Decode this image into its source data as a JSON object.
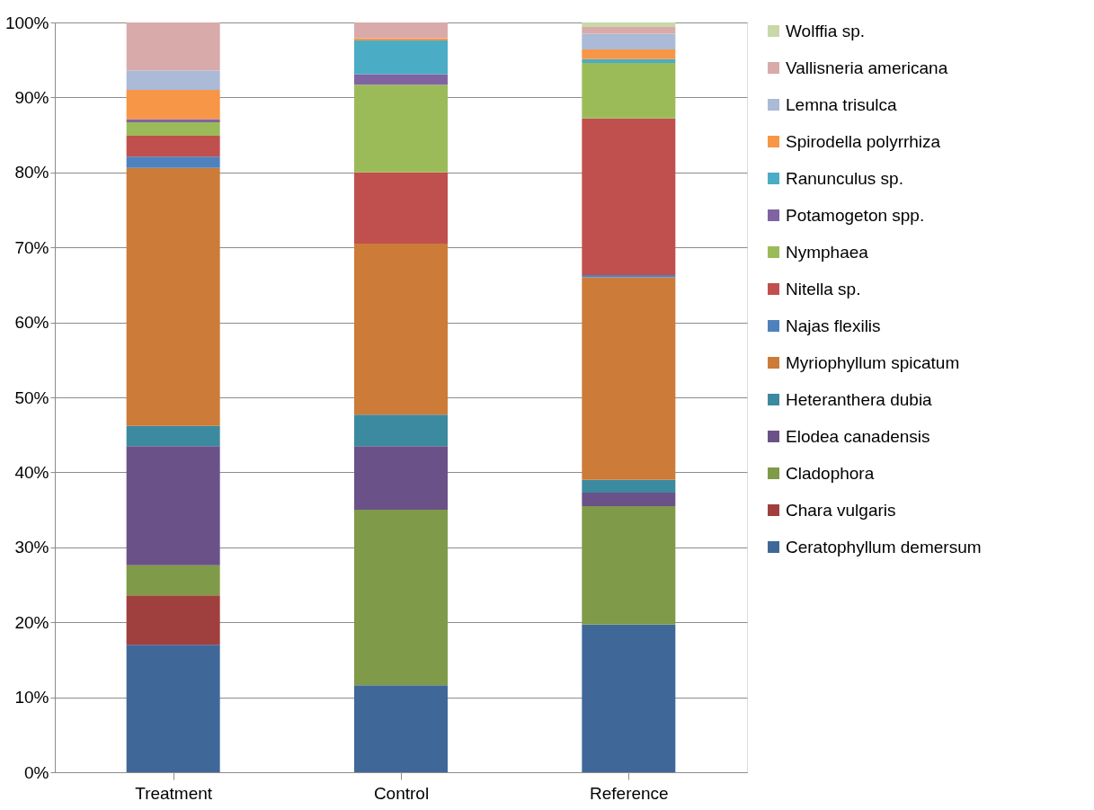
{
  "chart_data": {
    "type": "bar",
    "stacked": true,
    "categories": [
      "Treatment",
      "Control",
      "Reference"
    ],
    "series": [
      {
        "name": "Ceratophyllum demersum",
        "color": "#3f6899",
        "values": [
          17.0,
          11.6,
          19.7
        ]
      },
      {
        "name": "Chara vulgaris",
        "color": "#a0403e",
        "values": [
          6.6,
          0,
          0
        ]
      },
      {
        "name": "Cladophora",
        "color": "#7f9a48",
        "values": [
          4.0,
          23.4,
          15.8
        ]
      },
      {
        "name": "Elodea canadensis",
        "color": "#6a5288",
        "values": [
          15.9,
          8.5,
          1.8
        ]
      },
      {
        "name": "Heteranthera dubia",
        "color": "#3c8a9f",
        "values": [
          2.7,
          4.2,
          1.7
        ]
      },
      {
        "name": "Myriophyllum spicatum",
        "color": "#cc7b38",
        "values": [
          34.4,
          22.8,
          27.0
        ]
      },
      {
        "name": "Najas flexilis",
        "color": "#4f81bd",
        "values": [
          1.5,
          0,
          0.3
        ]
      },
      {
        "name": "Nitella sp.",
        "color": "#c0504d",
        "values": [
          2.8,
          9.5,
          20.9
        ]
      },
      {
        "name": "Nymphaea",
        "color": "#9bbb59",
        "values": [
          1.8,
          11.7,
          7.4
        ]
      },
      {
        "name": "Potamogeton spp.",
        "color": "#8064a2",
        "values": [
          0.4,
          1.4,
          0
        ]
      },
      {
        "name": "Ranunculus sp.",
        "color": "#4bacc6",
        "values": [
          0,
          4.5,
          0.5
        ]
      },
      {
        "name": "Spirodella polyrrhiza",
        "color": "#f79646",
        "values": [
          3.9,
          0.3,
          1.3
        ]
      },
      {
        "name": "Lemna trisulca",
        "color": "#aabad7",
        "values": [
          2.6,
          0,
          2.1
        ]
      },
      {
        "name": "Vallisneria americana",
        "color": "#d9aaaa",
        "values": [
          6.4,
          2.1,
          0.9
        ]
      },
      {
        "name": "Wolffia sp.",
        "color": "#c9d8a8",
        "values": [
          0,
          0,
          0.6
        ]
      }
    ],
    "ylim": [
      0,
      100
    ],
    "yticks": [
      {
        "value": 0,
        "label": "0%"
      },
      {
        "value": 10,
        "label": "10%"
      },
      {
        "value": 20,
        "label": "20%"
      },
      {
        "value": 30,
        "label": "30%"
      },
      {
        "value": 40,
        "label": "40%"
      },
      {
        "value": 50,
        "label": "50%"
      },
      {
        "value": 60,
        "label": "60%"
      },
      {
        "value": 70,
        "label": "70%"
      },
      {
        "value": 80,
        "label": "80%"
      },
      {
        "value": 90,
        "label": "90%"
      },
      {
        "value": 100,
        "label": "100%"
      }
    ],
    "grid": "y",
    "legend": "right"
  }
}
